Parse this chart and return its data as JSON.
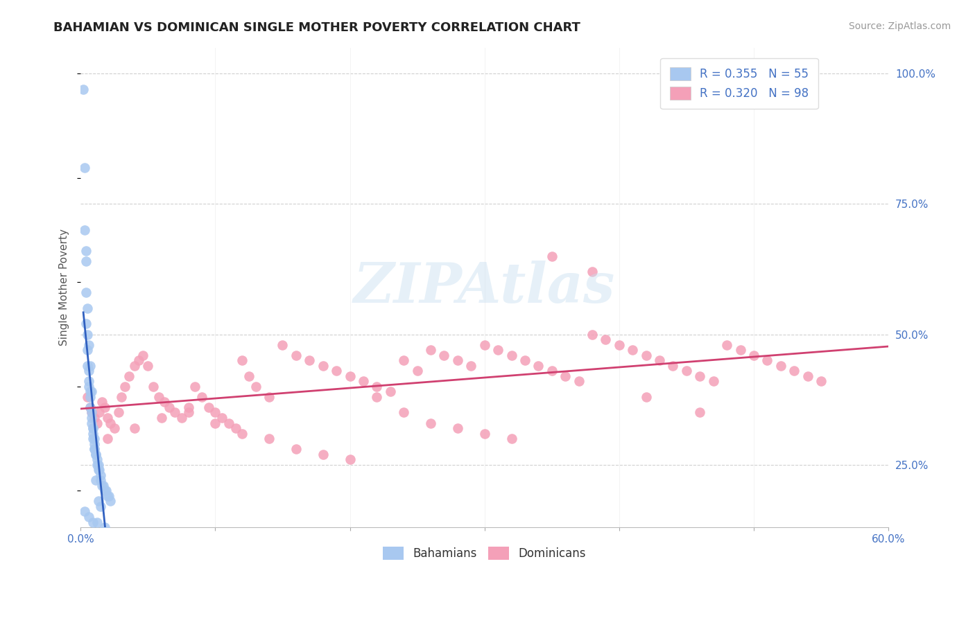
{
  "title": "BAHAMIAN VS DOMINICAN SINGLE MOTHER POVERTY CORRELATION CHART",
  "source_text": "Source: ZipAtlas.com",
  "ylabel": "Single Mother Poverty",
  "xlim": [
    0.0,
    0.6
  ],
  "ylim": [
    0.13,
    1.05
  ],
  "xticks": [
    0.0,
    0.1,
    0.2,
    0.3,
    0.4,
    0.5,
    0.6
  ],
  "xticklabels": [
    "0.0%",
    "",
    "",
    "",
    "",
    "",
    "60.0%"
  ],
  "yticks_right": [
    0.25,
    0.5,
    0.75,
    1.0
  ],
  "ytick_labels_right": [
    "25.0%",
    "50.0%",
    "75.0%",
    "100.0%"
  ],
  "grid_color": "#d0d0d0",
  "background_color": "#ffffff",
  "watermark": "ZIPAtlas",
  "bahamians_color": "#a8c8f0",
  "dominicans_color": "#f4a0b8",
  "bahamians_line_color": "#3060c0",
  "dominicans_line_color": "#d04070",
  "bahamians_R": 0.355,
  "bahamians_N": 55,
  "dominicans_R": 0.32,
  "dominicans_N": 98,
  "legend_R_blue": "R = 0.355",
  "legend_N_blue": "N = 55",
  "legend_R_pink": "R = 0.320",
  "legend_N_pink": "N = 98",
  "bahamians_x": [
    0.002,
    0.003,
    0.003,
    0.004,
    0.004,
    0.004,
    0.005,
    0.005,
    0.005,
    0.006,
    0.006,
    0.006,
    0.007,
    0.007,
    0.007,
    0.008,
    0.008,
    0.008,
    0.009,
    0.009,
    0.009,
    0.01,
    0.01,
    0.01,
    0.011,
    0.011,
    0.012,
    0.012,
    0.013,
    0.013,
    0.014,
    0.015,
    0.015,
    0.016,
    0.017,
    0.018,
    0.019,
    0.02,
    0.021,
    0.022,
    0.004,
    0.005,
    0.006,
    0.007,
    0.008,
    0.009,
    0.01,
    0.011,
    0.013,
    0.015,
    0.003,
    0.006,
    0.009,
    0.012,
    0.018
  ],
  "bahamians_y": [
    0.97,
    0.82,
    0.7,
    0.64,
    0.58,
    0.52,
    0.5,
    0.47,
    0.44,
    0.43,
    0.41,
    0.4,
    0.39,
    0.38,
    0.36,
    0.35,
    0.34,
    0.33,
    0.32,
    0.31,
    0.3,
    0.3,
    0.29,
    0.28,
    0.27,
    0.27,
    0.26,
    0.25,
    0.25,
    0.24,
    0.24,
    0.23,
    0.22,
    0.21,
    0.21,
    0.2,
    0.2,
    0.19,
    0.19,
    0.18,
    0.66,
    0.55,
    0.48,
    0.44,
    0.39,
    0.32,
    0.28,
    0.22,
    0.18,
    0.17,
    0.16,
    0.15,
    0.14,
    0.14,
    0.13
  ],
  "dominicans_x": [
    0.005,
    0.007,
    0.008,
    0.01,
    0.012,
    0.014,
    0.016,
    0.018,
    0.02,
    0.022,
    0.025,
    0.028,
    0.03,
    0.033,
    0.036,
    0.04,
    0.043,
    0.046,
    0.05,
    0.054,
    0.058,
    0.062,
    0.066,
    0.07,
    0.075,
    0.08,
    0.085,
    0.09,
    0.095,
    0.1,
    0.105,
    0.11,
    0.115,
    0.12,
    0.125,
    0.13,
    0.14,
    0.15,
    0.16,
    0.17,
    0.18,
    0.19,
    0.2,
    0.21,
    0.22,
    0.23,
    0.24,
    0.25,
    0.26,
    0.27,
    0.28,
    0.29,
    0.3,
    0.31,
    0.32,
    0.33,
    0.34,
    0.35,
    0.36,
    0.37,
    0.38,
    0.39,
    0.4,
    0.41,
    0.42,
    0.43,
    0.44,
    0.45,
    0.46,
    0.47,
    0.48,
    0.49,
    0.5,
    0.51,
    0.52,
    0.53,
    0.54,
    0.55,
    0.02,
    0.04,
    0.06,
    0.08,
    0.1,
    0.12,
    0.14,
    0.16,
    0.18,
    0.2,
    0.22,
    0.24,
    0.26,
    0.28,
    0.3,
    0.32,
    0.35,
    0.38,
    0.42,
    0.46
  ],
  "dominicans_y": [
    0.38,
    0.36,
    0.35,
    0.34,
    0.33,
    0.35,
    0.37,
    0.36,
    0.34,
    0.33,
    0.32,
    0.35,
    0.38,
    0.4,
    0.42,
    0.44,
    0.45,
    0.46,
    0.44,
    0.4,
    0.38,
    0.37,
    0.36,
    0.35,
    0.34,
    0.35,
    0.4,
    0.38,
    0.36,
    0.35,
    0.34,
    0.33,
    0.32,
    0.45,
    0.42,
    0.4,
    0.38,
    0.48,
    0.46,
    0.45,
    0.44,
    0.43,
    0.42,
    0.41,
    0.4,
    0.39,
    0.45,
    0.43,
    0.47,
    0.46,
    0.45,
    0.44,
    0.48,
    0.47,
    0.46,
    0.45,
    0.44,
    0.43,
    0.42,
    0.41,
    0.5,
    0.49,
    0.48,
    0.47,
    0.46,
    0.45,
    0.44,
    0.43,
    0.42,
    0.41,
    0.48,
    0.47,
    0.46,
    0.45,
    0.44,
    0.43,
    0.42,
    0.41,
    0.3,
    0.32,
    0.34,
    0.36,
    0.33,
    0.31,
    0.3,
    0.28,
    0.27,
    0.26,
    0.38,
    0.35,
    0.33,
    0.32,
    0.31,
    0.3,
    0.65,
    0.62,
    0.38,
    0.35
  ],
  "title_fontsize": 13,
  "axis_label_fontsize": 11,
  "tick_fontsize": 11,
  "legend_fontsize": 12,
  "source_fontsize": 10
}
